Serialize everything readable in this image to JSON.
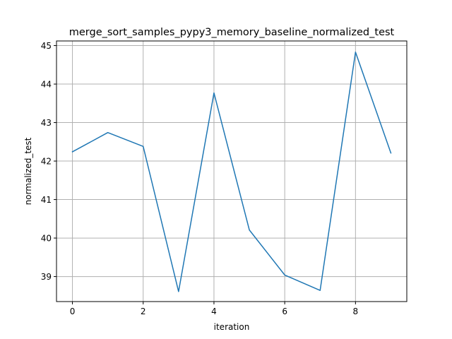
{
  "chart_data": {
    "type": "line",
    "title": "merge_sort_samples_pypy3_memory_baseline_normalized_test",
    "xlabel": "iteration",
    "ylabel": "normalized_test",
    "xlim": [
      -0.45,
      9.45
    ],
    "ylim": [
      38.35,
      45.12
    ],
    "xticks": [
      0,
      2,
      4,
      6,
      8
    ],
    "yticks": [
      39,
      40,
      41,
      42,
      43,
      44,
      45
    ],
    "grid": true,
    "series": [
      {
        "color": "#1f77b4",
        "x": [
          0,
          1,
          2,
          3,
          4,
          5,
          6,
          7,
          8,
          9
        ],
        "y": [
          42.24,
          42.74,
          42.38,
          38.61,
          43.77,
          40.21,
          39.04,
          38.64,
          44.83,
          42.21
        ]
      }
    ]
  }
}
